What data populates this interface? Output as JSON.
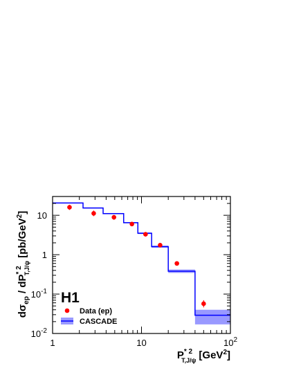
{
  "chart_data": {
    "type": "scatter",
    "x_scale": "log",
    "y_scale": "log",
    "xlim": [
      1,
      100
    ],
    "ylim": [
      0.01,
      30
    ],
    "x_ticks": [
      {
        "v": 1,
        "base": "1",
        "exp": ""
      },
      {
        "v": 10,
        "base": "10",
        "exp": ""
      },
      {
        "v": 100,
        "base": "10",
        "exp": "2"
      }
    ],
    "y_ticks": [
      {
        "v": 0.01,
        "base": "10",
        "exp": "-2"
      },
      {
        "v": 0.1,
        "base": "10",
        "exp": "-1"
      },
      {
        "v": 1,
        "base": "1",
        "exp": ""
      },
      {
        "v": 10,
        "base": "10",
        "exp": ""
      }
    ],
    "xlabel": {
      "main": "P",
      "sup": "* 2",
      "sub": "T,J/ψ",
      "unit": "[GeV",
      "unit_exp": "2",
      "close": "]"
    },
    "ylabel": {
      "pre": "dσ",
      "pre_sub": "ep",
      "mid": " / dP",
      "mid_sup": "* 2",
      "mid_sub": "T,J/ψ",
      "unit": " [pb/GeV",
      "unit_exp": "2",
      "close": "]"
    },
    "experiment_label": "H1",
    "grid": false,
    "legend_position": "bottom-left",
    "series": [
      {
        "name": "Data (ep)",
        "kind": "points",
        "color": "#ff0000",
        "points": [
          {
            "x": 1.55,
            "y": 16.0,
            "err_lo": 13.7,
            "err_hi": 18.5
          },
          {
            "x": 2.9,
            "y": 11.2,
            "err_lo": 9.5,
            "err_hi": 13.2
          },
          {
            "x": 4.9,
            "y": 8.9,
            "err_lo": 7.7,
            "err_hi": 10.2
          },
          {
            "x": 7.8,
            "y": 6.0,
            "err_lo": 5.3,
            "err_hi": 6.8
          },
          {
            "x": 11.1,
            "y": 3.3,
            "err_lo": 2.9,
            "err_hi": 3.7
          },
          {
            "x": 16.2,
            "y": 1.75,
            "err_lo": 1.55,
            "err_hi": 1.95
          },
          {
            "x": 25.0,
            "y": 0.6,
            "err_lo": 0.53,
            "err_hi": 0.68
          },
          {
            "x": 50.0,
            "y": 0.057,
            "err_lo": 0.046,
            "err_hi": 0.07
          }
        ]
      },
      {
        "name": "CASCADE",
        "kind": "histogram",
        "color": "#0000ff",
        "band_color": "#9999ff",
        "bins": [
          {
            "x0": 1.0,
            "x1": 2.2,
            "y": 20.5,
            "band_lo": 20.0,
            "band_hi": 21.0
          },
          {
            "x0": 2.2,
            "x1": 3.7,
            "y": 15.3,
            "band_lo": 14.9,
            "band_hi": 15.8
          },
          {
            "x0": 3.7,
            "x1": 6.3,
            "y": 11.0,
            "band_lo": 10.7,
            "band_hi": 11.4
          },
          {
            "x0": 6.3,
            "x1": 9.1,
            "y": 6.5,
            "band_lo": 6.3,
            "band_hi": 6.7
          },
          {
            "x0": 9.1,
            "x1": 13.0,
            "y": 3.5,
            "band_lo": 3.35,
            "band_hi": 3.65
          },
          {
            "x0": 13.0,
            "x1": 20.0,
            "y": 1.6,
            "band_lo": 1.5,
            "band_hi": 1.7
          },
          {
            "x0": 20.0,
            "x1": 40.0,
            "y": 0.38,
            "band_lo": 0.345,
            "band_hi": 0.42
          },
          {
            "x0": 40.0,
            "x1": 100.0,
            "y": 0.029,
            "band_lo": 0.017,
            "band_hi": 0.04
          }
        ]
      }
    ]
  }
}
